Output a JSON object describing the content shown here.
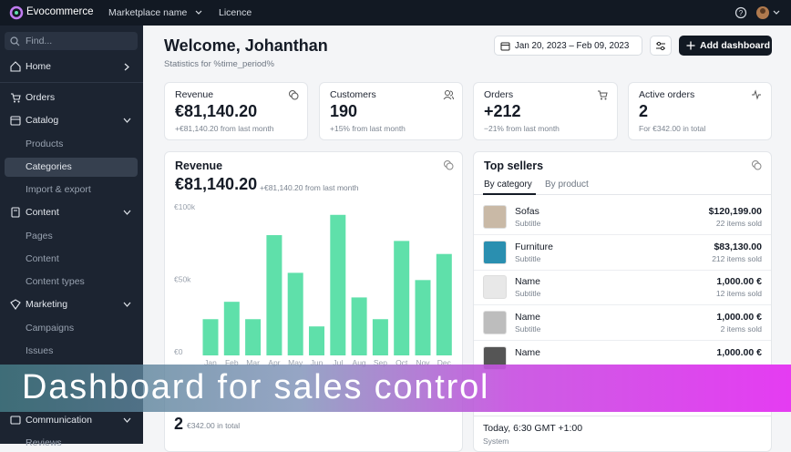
{
  "topbar": {
    "brand": "Evocommerce",
    "marketplace": "Marketplace name",
    "licence": "Licence"
  },
  "sidebar": {
    "search": "Find...",
    "items": [
      "Home",
      "Orders",
      "Catalog",
      "Products",
      "Categories",
      "Import & export",
      "Content",
      "Pages",
      "Content",
      "Content types",
      "Marketing",
      "Campaigns",
      "Issues",
      "Communication",
      "Reviews"
    ]
  },
  "header": {
    "title": "Welcome, Johanthan",
    "subtitle": "Statistics for %time_period%",
    "date_range": "Jan 20, 2023 – Feb 09, 2023",
    "add_button": "Add dashboard"
  },
  "stats": [
    {
      "label": "Revenue",
      "value": "€81,140.20",
      "note": "+€81,140.20 from last month"
    },
    {
      "label": "Customers",
      "value": "190",
      "note": "+15% from last month"
    },
    {
      "label": "Orders",
      "value": "+212",
      "note": "−21% from last month"
    },
    {
      "label": "Active orders",
      "value": "2",
      "note": "For €342.00 in total"
    }
  ],
  "revenue_chart": {
    "type": "bar",
    "title": "Revenue",
    "total": "€81,140.20",
    "note": "+€81,140.20 from last month",
    "categories": [
      "Jan",
      "Feb",
      "Mar",
      "Apr",
      "May",
      "Jun",
      "Jul",
      "Aug",
      "Sep",
      "Oct",
      "Nov",
      "Dec"
    ],
    "values": [
      25000,
      37000,
      25000,
      83000,
      57000,
      20000,
      97000,
      40000,
      25000,
      79000,
      52000,
      70000
    ],
    "color": "#5fe0aa",
    "ylim": [
      0,
      100000
    ],
    "yticks": [
      {
        "value": 0,
        "label": "€0"
      },
      {
        "value": 50000,
        "label": "€50k"
      },
      {
        "value": 100000,
        "label": "€100k"
      }
    ]
  },
  "top_sellers": {
    "title": "Top sellers",
    "tabs": [
      "By category",
      "By product"
    ],
    "rows": [
      {
        "name": "Sofas",
        "subtitle": "Subtitle",
        "amount": "$120,199.00",
        "sold": "22 items sold"
      },
      {
        "name": "Furniture",
        "subtitle": "Subtitle",
        "amount": "$83,130.00",
        "sold": "212 items sold"
      },
      {
        "name": "Name",
        "subtitle": "Subtitle",
        "amount": "1,000.00 €",
        "sold": "12 items sold"
      },
      {
        "name": "Name",
        "subtitle": "Subtitle",
        "amount": "1,000.00 €",
        "sold": "2 items sold"
      },
      {
        "name": "Name",
        "amount": "1,000.00 €"
      }
    ]
  },
  "bottom": {
    "value": "2",
    "note": "€342.00 in total",
    "time": "Today, 6:30 GMT +1:00",
    "source": "System"
  },
  "banner": "Dashboard for sales control"
}
